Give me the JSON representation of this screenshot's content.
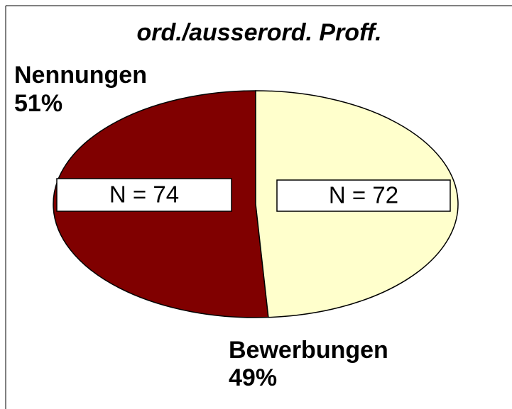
{
  "chart_data": {
    "type": "pie",
    "title": "ord./ausserord. Proff.",
    "categories": [
      "Nennungen",
      "Bewerbungen"
    ],
    "values": [
      51,
      49
    ],
    "value_labels": [
      "51%",
      "49%"
    ],
    "colors": [
      "#800000",
      "#ffffcc"
    ],
    "annotations": [
      "N = 74",
      "N = 72"
    ]
  }
}
